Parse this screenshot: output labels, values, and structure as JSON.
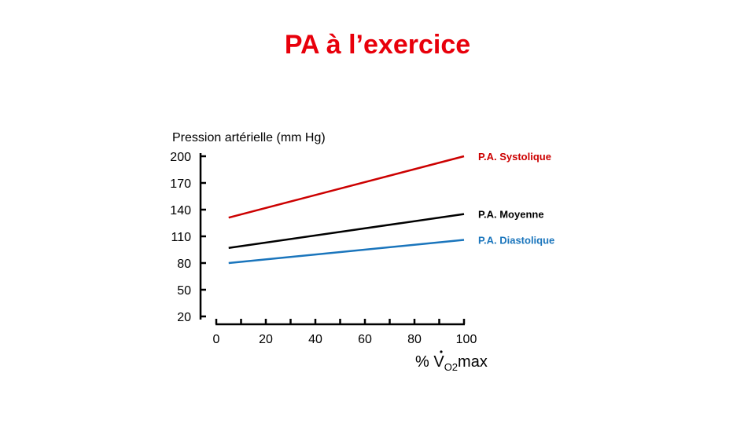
{
  "slide": {
    "title": "PA à l’exercice"
  },
  "chart_data": {
    "type": "line",
    "ylabel": "Pression artérielle (mm Hg)",
    "xlabel": {
      "prefix": "% ",
      "symbol": "V",
      "subscript": "O2",
      "suffix": "max"
    },
    "x_ticks": [
      0,
      20,
      40,
      60,
      80,
      100
    ],
    "y_ticks": [
      20,
      50,
      80,
      110,
      140,
      170,
      200
    ],
    "xlim": [
      0,
      100
    ],
    "series": [
      {
        "name": "P.A. Systolique",
        "color": "#cc0000",
        "x": [
          5,
          100
        ],
        "y": [
          131,
          200
        ]
      },
      {
        "name": "P.A. Moyenne",
        "color": "#000000",
        "x": [
          5,
          100
        ],
        "y": [
          97,
          135
        ]
      },
      {
        "name": "P.A. Diastolique",
        "color": "#1a75bc",
        "x": [
          5,
          100
        ],
        "y": [
          80,
          106
        ]
      }
    ]
  }
}
